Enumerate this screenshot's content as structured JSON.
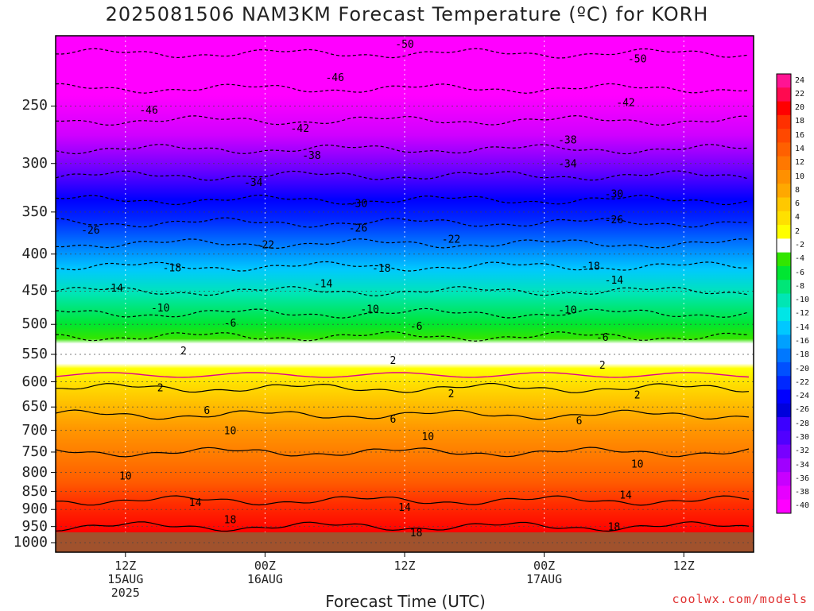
{
  "chart_data": {
    "type": "heatmap",
    "title": "2025081506 NAM3KM Forecast Temperature (ºC) for KORH",
    "xlabel": "Forecast Time (UTC)",
    "ylabel": "",
    "y_axis": {
      "scale": "log",
      "range": [
        1000,
        200
      ],
      "ticks": [
        "250",
        "300",
        "350",
        "400",
        "450",
        "500",
        "550",
        "600",
        "650",
        "700",
        "750",
        "800",
        "850",
        "900",
        "950",
        "1000"
      ]
    },
    "x_axis": {
      "range_hours": [
        0,
        60
      ],
      "ticks": [
        {
          "hour": 6,
          "lines": [
            "12Z",
            "15AUG",
            "2025"
          ]
        },
        {
          "hour": 18,
          "lines": [
            "00Z",
            "16AUG"
          ]
        },
        {
          "hour": 30,
          "lines": [
            "12Z"
          ]
        },
        {
          "hour": 42,
          "lines": [
            "00Z",
            "17AUG"
          ]
        },
        {
          "hour": 54,
          "lines": [
            "12Z"
          ]
        }
      ]
    },
    "grid": true,
    "colorbar": {
      "position": "right",
      "labels": [
        "24",
        "22",
        "20",
        "18",
        "16",
        "14",
        "12",
        "10",
        "8",
        "6",
        "4",
        "2",
        "-2",
        "-4",
        "-6",
        "-8",
        "-10",
        "-12",
        "-14",
        "-16",
        "-18",
        "-20",
        "-22",
        "-24",
        "-26",
        "-28",
        "-30",
        "-32",
        "-34",
        "-36",
        "-38",
        "-40"
      ],
      "colors": [
        "#ff1493",
        "#ff0a50",
        "#ff0000",
        "#ff3000",
        "#ff4800",
        "#ff6000",
        "#ff7800",
        "#ff9000",
        "#ffa800",
        "#ffc800",
        "#ffe000",
        "#ffff00",
        "#ffffff",
        "#32e600",
        "#00e632",
        "#00e678",
        "#00e6b4",
        "#00e6e6",
        "#00c8ff",
        "#00a0ff",
        "#0078ff",
        "#0050ff",
        "#0028ff",
        "#0000ff",
        "#0000dc",
        "#3c00ff",
        "#5000ff",
        "#7800ff",
        "#a000ff",
        "#c800ff",
        "#e600ff",
        "#ff00ff"
      ]
    },
    "temperature_profile": {
      "pressure_hpa": [
        200,
        250,
        300,
        350,
        400,
        450,
        500,
        550,
        600,
        650,
        700,
        750,
        800,
        850,
        900,
        950,
        1000
      ],
      "temperature_c": [
        -52,
        -44,
        -36,
        -28,
        -20,
        -14,
        -8,
        -3,
        1,
        5,
        8,
        10,
        11,
        13,
        15,
        18,
        20
      ]
    },
    "contour_labels": [
      {
        "text": "-50",
        "hour": 30,
        "hpa": 205
      },
      {
        "text": "-50",
        "hour": 50,
        "hpa": 215
      },
      {
        "text": "-46",
        "hour": 8,
        "hpa": 253
      },
      {
        "text": "-46",
        "hour": 24,
        "hpa": 228
      },
      {
        "text": "-42",
        "hour": 21,
        "hpa": 268
      },
      {
        "text": "-42",
        "hour": 49,
        "hpa": 247
      },
      {
        "text": "-38",
        "hour": 22,
        "hpa": 292
      },
      {
        "text": "-38",
        "hour": 44,
        "hpa": 278
      },
      {
        "text": "-34",
        "hour": 17,
        "hpa": 318
      },
      {
        "text": "-34",
        "hour": 44,
        "hpa": 300
      },
      {
        "text": "-30",
        "hour": 26,
        "hpa": 340
      },
      {
        "text": "-30",
        "hour": 48,
        "hpa": 330
      },
      {
        "text": "-26",
        "hour": 3,
        "hpa": 370
      },
      {
        "text": "-26",
        "hour": 26,
        "hpa": 368
      },
      {
        "text": "-26",
        "hour": 48,
        "hpa": 358
      },
      {
        "text": "-22",
        "hour": 18,
        "hpa": 388
      },
      {
        "text": "-22",
        "hour": 34,
        "hpa": 381
      },
      {
        "text": "-18",
        "hour": 10,
        "hpa": 417
      },
      {
        "text": "-18",
        "hour": 28,
        "hpa": 418
      },
      {
        "text": "-18",
        "hour": 46,
        "hpa": 415
      },
      {
        "text": "-14",
        "hour": 5,
        "hpa": 445
      },
      {
        "text": "-14",
        "hour": 23,
        "hpa": 439
      },
      {
        "text": "-14",
        "hour": 48,
        "hpa": 434
      },
      {
        "text": "-10",
        "hour": 9,
        "hpa": 474
      },
      {
        "text": "-10",
        "hour": 27,
        "hpa": 476
      },
      {
        "text": "-10",
        "hour": 44,
        "hpa": 477
      },
      {
        "text": "-6",
        "hour": 15,
        "hpa": 497
      },
      {
        "text": "-6",
        "hour": 31,
        "hpa": 502
      },
      {
        "text": "-6",
        "hour": 47,
        "hpa": 520
      },
      {
        "text": "2",
        "hour": 11,
        "hpa": 543
      },
      {
        "text": "2",
        "hour": 29,
        "hpa": 560
      },
      {
        "text": "2",
        "hour": 47,
        "hpa": 568
      },
      {
        "text": "2",
        "hour": 9,
        "hpa": 611
      },
      {
        "text": "2",
        "hour": 34,
        "hpa": 622
      },
      {
        "text": "2",
        "hour": 50,
        "hpa": 625
      },
      {
        "text": "6",
        "hour": 13,
        "hpa": 656
      },
      {
        "text": "6",
        "hour": 29,
        "hpa": 675
      },
      {
        "text": "6",
        "hour": 45,
        "hpa": 678
      },
      {
        "text": "10",
        "hour": 15,
        "hpa": 700
      },
      {
        "text": "10",
        "hour": 32,
        "hpa": 713
      },
      {
        "text": "10",
        "hour": 50,
        "hpa": 778
      },
      {
        "text": "10",
        "hour": 6,
        "hpa": 808
      },
      {
        "text": "14",
        "hour": 12,
        "hpa": 879
      },
      {
        "text": "14",
        "hour": 30,
        "hpa": 893
      },
      {
        "text": "14",
        "hour": 49,
        "hpa": 858
      },
      {
        "text": "18",
        "hour": 15,
        "hpa": 928
      },
      {
        "text": "18",
        "hour": 31,
        "hpa": 968
      },
      {
        "text": "18",
        "hour": 48,
        "hpa": 950
      }
    ]
  },
  "credit": "coolwx.com/models"
}
